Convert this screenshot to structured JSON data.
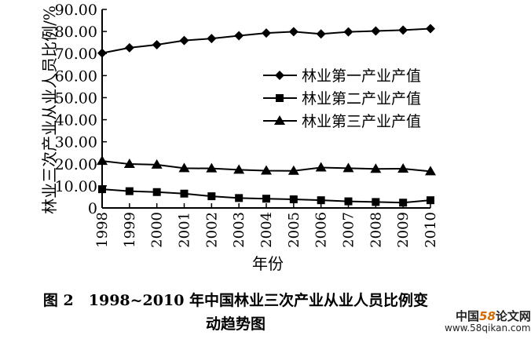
{
  "chart_data": {
    "type": "line",
    "title": "",
    "xlabel": "年份",
    "ylabel": "林业三次产业从业人员比例/%",
    "x": [
      "1998",
      "1999",
      "2000",
      "2001",
      "2002",
      "2003",
      "2004",
      "2005",
      "2006",
      "2007",
      "2008",
      "2009",
      "2010"
    ],
    "y_ticks": [
      "0",
      "10.00",
      "20.00",
      "30.00",
      "40.00",
      "50.00",
      "60.00",
      "70.00",
      "80.00",
      "90.00"
    ],
    "ylim": [
      0,
      90
    ],
    "grid": false,
    "legend_position": "right",
    "series": [
      {
        "name": "林业第一产业产值",
        "marker": "diamond",
        "values": [
          70.2,
          72.6,
          74.0,
          75.9,
          76.8,
          78.1,
          79.3,
          79.9,
          78.9,
          79.8,
          80.2,
          80.6,
          81.3
        ]
      },
      {
        "name": "林业第二产业产值",
        "marker": "square",
        "values": [
          8.5,
          7.6,
          7.2,
          6.5,
          5.3,
          4.5,
          4.2,
          3.9,
          3.5,
          3.0,
          2.7,
          2.4,
          3.5
        ]
      },
      {
        "name": "林业第三产业产值",
        "marker": "triangle",
        "values": [
          21.3,
          19.9,
          19.6,
          18.0,
          17.9,
          17.3,
          16.9,
          16.8,
          18.3,
          18.0,
          17.7,
          17.8,
          16.6
        ]
      }
    ]
  },
  "caption": {
    "line1": "图 2　1998~2010 年中国林业三次产业从业人员比例变",
    "line2": "动趋势图"
  },
  "watermark": {
    "brand_a": "中国",
    "brand_b": "58",
    "brand_c": "论文网",
    "url": "www.58qikan.com.cn"
  }
}
